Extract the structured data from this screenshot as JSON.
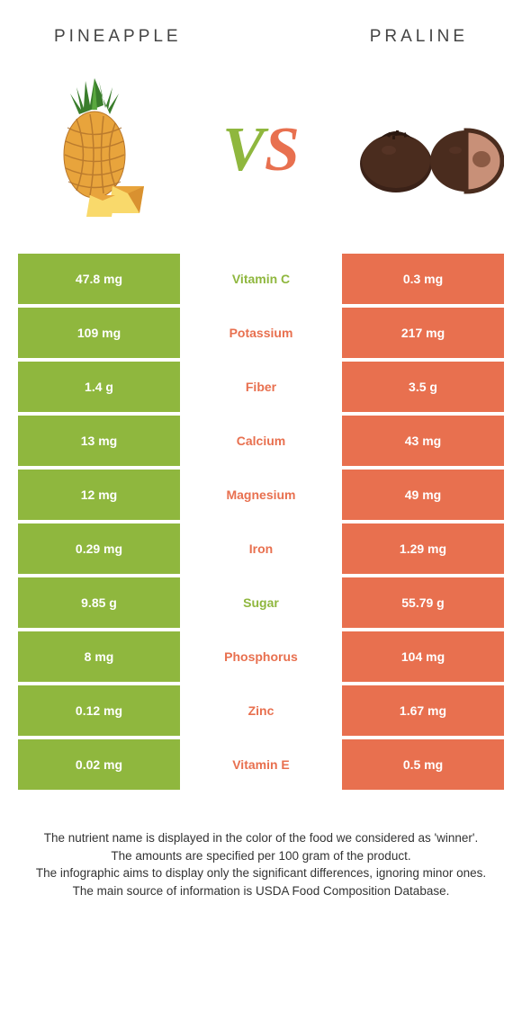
{
  "left": {
    "name": "PINEAPPLE",
    "color": "#8fb73e"
  },
  "right": {
    "name": "PRALINE",
    "color": "#e8704f"
  },
  "vs_text": {
    "v": "V",
    "s": "S"
  },
  "rows": [
    {
      "left": "47.8 mg",
      "label": "Vitamin C",
      "right": "0.3 mg",
      "winner": "left"
    },
    {
      "left": "109 mg",
      "label": "Potassium",
      "right": "217 mg",
      "winner": "right"
    },
    {
      "left": "1.4 g",
      "label": "Fiber",
      "right": "3.5 g",
      "winner": "right"
    },
    {
      "left": "13 mg",
      "label": "Calcium",
      "right": "43 mg",
      "winner": "right"
    },
    {
      "left": "12 mg",
      "label": "Magnesium",
      "right": "49 mg",
      "winner": "right"
    },
    {
      "left": "0.29 mg",
      "label": "Iron",
      "right": "1.29 mg",
      "winner": "right"
    },
    {
      "left": "9.85 g",
      "label": "Sugar",
      "right": "55.79 g",
      "winner": "left"
    },
    {
      "left": "8 mg",
      "label": "Phosphorus",
      "right": "104 mg",
      "winner": "right"
    },
    {
      "left": "0.12 mg",
      "label": "Zinc",
      "right": "1.67 mg",
      "winner": "right"
    },
    {
      "left": "0.02 mg",
      "label": "Vitamin E",
      "right": "0.5 mg",
      "winner": "right"
    }
  ],
  "footer": [
    "The nutrient name is displayed in the color of the food we considered as 'winner'.",
    "The amounts are specified per 100 gram of the product.",
    "The infographic aims to display only the significant differences, ignoring minor ones.",
    "The main source of information is USDA Food Composition Database."
  ]
}
